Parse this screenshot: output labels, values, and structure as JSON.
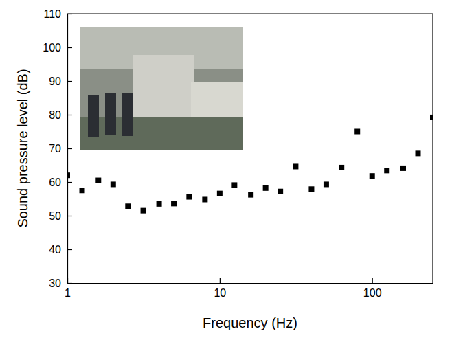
{
  "chart_data": {
    "type": "scatter",
    "x_label": "Frequency (Hz)",
    "y_label": "Sound pressure level (dB)",
    "x": [
      1,
      1.25,
      1.6,
      2,
      2.5,
      3.15,
      4,
      5,
      6.3,
      8,
      10,
      12.5,
      16,
      20,
      25,
      31.5,
      40,
      50,
      63,
      80,
      100,
      125,
      160,
      200,
      250
    ],
    "values": [
      62,
      57.5,
      60.5,
      59.3,
      52.8,
      51.5,
      53.5,
      53.6,
      55.6,
      54.8,
      56.6,
      59.1,
      56.2,
      58.2,
      57.2,
      64.6,
      57.9,
      59.3,
      64.3,
      75,
      61.8,
      63.4,
      64.1,
      68.5,
      79.2
    ],
    "color": "#000000",
    "marker": "square",
    "log": "x",
    "xlim": [
      1,
      250
    ],
    "xticks": [
      1,
      10,
      100
    ],
    "ylim": [
      30,
      110
    ],
    "yticks": [
      30,
      40,
      50,
      60,
      70,
      80,
      90,
      100,
      110
    ],
    "grid": false
  }
}
